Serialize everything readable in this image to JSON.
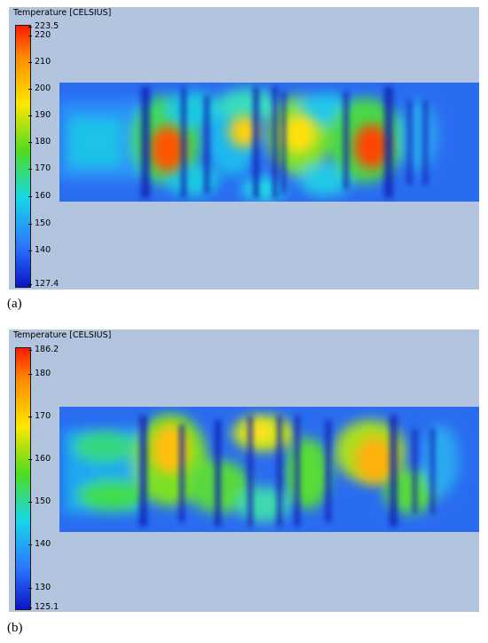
{
  "panels": [
    {
      "caption": "(a)",
      "legend_title": "Temperature [CELSIUS]",
      "ticks": [
        "223.5",
        "220",
        "210",
        "200",
        "190",
        "180",
        "170",
        "160",
        "150",
        "140",
        "127.4"
      ],
      "colors": [
        "#ff1a00",
        "#ff8a00",
        "#ffe600",
        "#4fdc20",
        "#18d6e8",
        "#2a78ff",
        "#0a14c8"
      ]
    },
    {
      "caption": "(b)",
      "legend_title": "Temperature [CELSIUS]",
      "ticks": [
        "186.2",
        "180",
        "170",
        "160",
        "150",
        "140",
        "130",
        "125.1"
      ],
      "colors": [
        "#ff1a00",
        "#ff8a00",
        "#ffe600",
        "#4fdc20",
        "#18d6e8",
        "#2a78ff",
        "#0a14c8"
      ]
    }
  ]
}
